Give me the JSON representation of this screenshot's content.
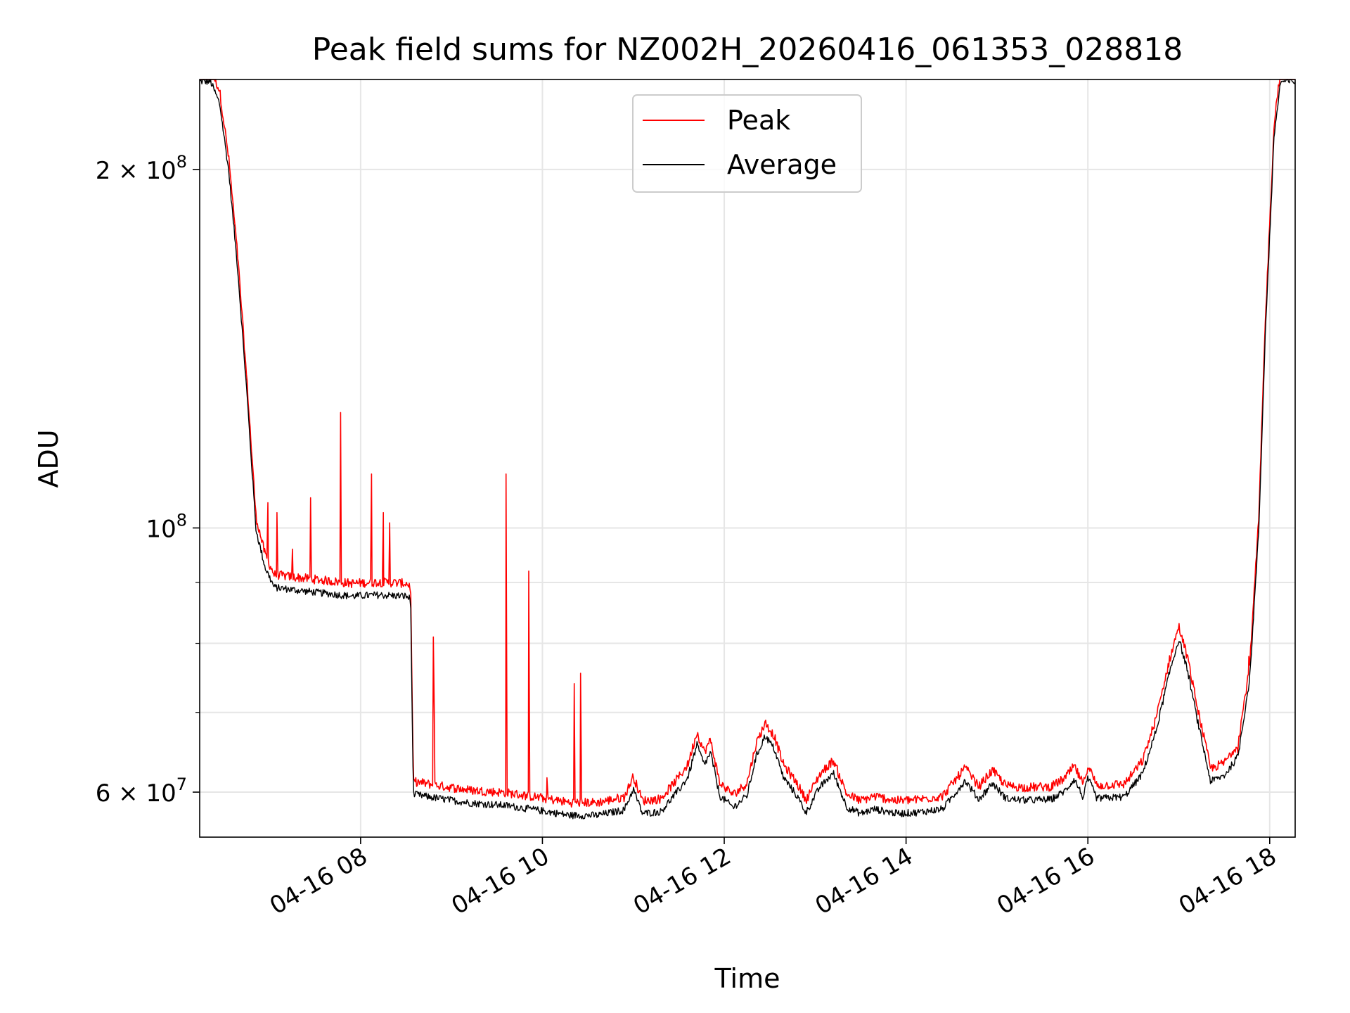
{
  "chart_data": {
    "type": "line",
    "title": "Peak field sums for NZ002H_20260416_061353_028818",
    "xlabel": "Time",
    "ylabel": "ADU",
    "yscale": "log",
    "xlim_hours": [
      6.23,
      18.28
    ],
    "ylim": [
      55000000,
      238000000
    ],
    "grid": true,
    "legend_position": "upper center",
    "x_ticks": [
      {
        "hour": 8,
        "label": "04-16 08"
      },
      {
        "hour": 10,
        "label": "04-16 10"
      },
      {
        "hour": 12,
        "label": "04-16 12"
      },
      {
        "hour": 14,
        "label": "04-16 14"
      },
      {
        "hour": 16,
        "label": "04-16 16"
      },
      {
        "hour": 18,
        "label": "04-16 18"
      }
    ],
    "y_major_ticks": [
      {
        "value": 60000000,
        "base": "6 × 10",
        "exp": "7"
      },
      {
        "value": 100000000,
        "base": "10",
        "exp": "8"
      },
      {
        "value": 200000000,
        "base": "2 × 10",
        "exp": "8"
      }
    ],
    "y_minor_ticks": [
      70000000,
      80000000,
      90000000
    ],
    "series": [
      {
        "name": "Peak",
        "color": "#ff0000",
        "role": "peak"
      },
      {
        "name": "Average",
        "color": "#000000",
        "role": "average"
      }
    ],
    "baseline_points": [
      [
        6.23,
        238000000
      ],
      [
        6.35,
        238000000
      ],
      [
        6.45,
        228000000
      ],
      [
        6.55,
        200000000
      ],
      [
        6.65,
        165000000
      ],
      [
        6.75,
        130000000
      ],
      [
        6.85,
        100000000
      ],
      [
        6.95,
        93000000
      ],
      [
        7.05,
        89500000
      ],
      [
        7.3,
        89000000
      ],
      [
        7.6,
        88500000
      ],
      [
        7.9,
        88000000
      ],
      [
        8.2,
        88200000
      ],
      [
        8.5,
        88000000
      ],
      [
        8.55,
        87500000
      ],
      [
        8.58,
        60000000
      ],
      [
        8.8,
        59600000
      ],
      [
        9.2,
        59000000
      ],
      [
        9.6,
        58700000
      ],
      [
        10.0,
        58100000
      ],
      [
        10.3,
        57600000
      ],
      [
        10.6,
        57600000
      ],
      [
        10.9,
        58200000
      ],
      [
        11.0,
        60600000
      ],
      [
        11.1,
        57800000
      ],
      [
        11.3,
        58000000
      ],
      [
        11.5,
        60500000
      ],
      [
        11.6,
        62000000
      ],
      [
        11.7,
        66000000
      ],
      [
        11.78,
        63500000
      ],
      [
        11.85,
        65000000
      ],
      [
        11.95,
        59800000
      ],
      [
        12.1,
        58500000
      ],
      [
        12.25,
        59800000
      ],
      [
        12.35,
        64500000
      ],
      [
        12.45,
        67200000
      ],
      [
        12.55,
        65500000
      ],
      [
        12.65,
        62000000
      ],
      [
        12.8,
        59800000
      ],
      [
        12.9,
        57900000
      ],
      [
        13.05,
        60800000
      ],
      [
        13.2,
        62500000
      ],
      [
        13.35,
        58500000
      ],
      [
        13.5,
        57800000
      ],
      [
        13.65,
        58300000
      ],
      [
        13.9,
        57800000
      ],
      [
        14.1,
        57900000
      ],
      [
        14.4,
        58300000
      ],
      [
        14.65,
        61600000
      ],
      [
        14.8,
        59400000
      ],
      [
        14.95,
        61300000
      ],
      [
        15.1,
        59500000
      ],
      [
        15.3,
        59300000
      ],
      [
        15.6,
        59400000
      ],
      [
        15.75,
        60400000
      ],
      [
        15.85,
        61800000
      ],
      [
        15.95,
        59600000
      ],
      [
        16.0,
        61900000
      ],
      [
        16.1,
        59500000
      ],
      [
        16.4,
        59700000
      ],
      [
        16.6,
        62400000
      ],
      [
        16.75,
        67800000
      ],
      [
        16.9,
        76000000
      ],
      [
        17.0,
        81000000
      ],
      [
        17.1,
        76000000
      ],
      [
        17.2,
        69500000
      ],
      [
        17.35,
        61500000
      ],
      [
        17.5,
        62200000
      ],
      [
        17.65,
        64500000
      ],
      [
        17.78,
        75000000
      ],
      [
        17.88,
        100000000
      ],
      [
        17.95,
        145000000
      ],
      [
        18.05,
        215000000
      ],
      [
        18.12,
        238000000
      ],
      [
        18.28,
        238000000
      ]
    ],
    "peak_spikes": [
      [
        6.98,
        105000000
      ],
      [
        7.08,
        103000000
      ],
      [
        7.25,
        96000000
      ],
      [
        7.45,
        106000000
      ],
      [
        7.78,
        125000000
      ],
      [
        8.12,
        111000000
      ],
      [
        8.25,
        103000000
      ],
      [
        8.32,
        101000000
      ],
      [
        8.8,
        81000000
      ],
      [
        8.81,
        70500000
      ],
      [
        9.6,
        111000000
      ],
      [
        9.85,
        92000000
      ],
      [
        10.05,
        61700000
      ],
      [
        10.35,
        74000000
      ],
      [
        10.42,
        75500000
      ],
      [
        17.65,
        64700000
      ],
      [
        17.77,
        78000000
      ]
    ]
  }
}
